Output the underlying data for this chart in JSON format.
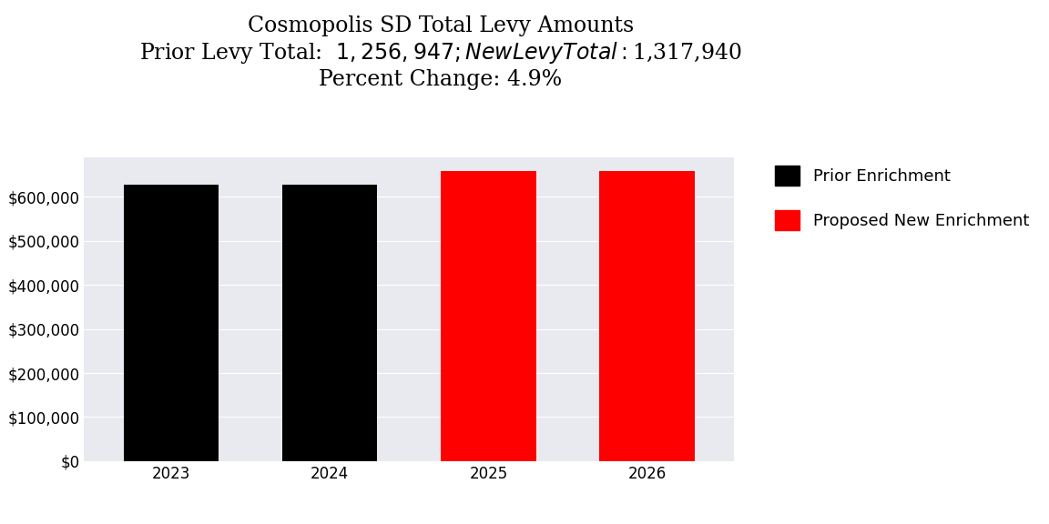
{
  "title_line1": "Cosmopolis SD Total Levy Amounts",
  "title_line2": "Prior Levy Total:  $1,256,947; New Levy Total: $1,317,940",
  "title_line3": "Percent Change: 4.9%",
  "categories": [
    "2023",
    "2024",
    "2025",
    "2026"
  ],
  "values": [
    628474,
    628473,
    658970,
    658970
  ],
  "bar_colors": [
    "#000000",
    "#000000",
    "#ff0000",
    "#ff0000"
  ],
  "legend_labels": [
    "Prior Enrichment",
    "Proposed New Enrichment"
  ],
  "legend_colors": [
    "#000000",
    "#ff0000"
  ],
  "ylim": [
    0,
    690000
  ],
  "ytick_values": [
    0,
    100000,
    200000,
    300000,
    400000,
    500000,
    600000
  ],
  "background_color": "#e8eaf0",
  "figure_background": "#ffffff",
  "title_fontsize": 17,
  "tick_fontsize": 12,
  "legend_fontsize": 13
}
